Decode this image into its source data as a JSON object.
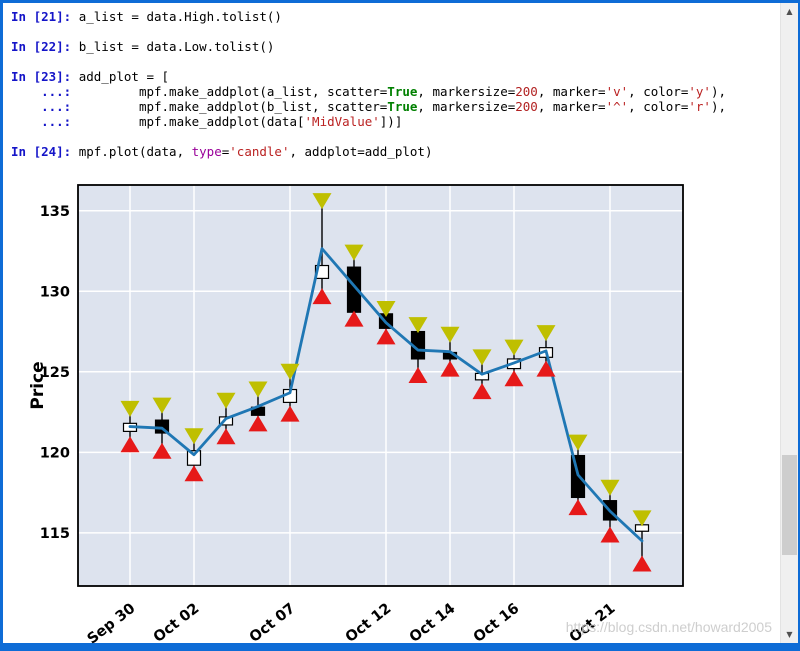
{
  "window": {
    "frame_color": "#0e6cd6",
    "watermark": "https://blog.csdn.net/howard2005"
  },
  "console": {
    "palette": {
      "prompt": "#1414c8",
      "code": "#000000",
      "keyword": "#008000",
      "number": "#b22222",
      "string": "#ba2121",
      "builtin": "#990099"
    },
    "lines": [
      {
        "segments": [
          {
            "t": "In [21]: ",
            "c": "prompt",
            "b": 1
          },
          {
            "t": "a_list = data.High.tolist()",
            "c": "code"
          }
        ]
      },
      {
        "segments": []
      },
      {
        "segments": [
          {
            "t": "In [22]: ",
            "c": "prompt",
            "b": 1
          },
          {
            "t": "b_list = data.Low.tolist()",
            "c": "code"
          }
        ]
      },
      {
        "segments": []
      },
      {
        "segments": [
          {
            "t": "In [23]: ",
            "c": "prompt",
            "b": 1
          },
          {
            "t": "add_plot = [",
            "c": "code"
          }
        ]
      },
      {
        "segments": [
          {
            "t": "    ...: ",
            "c": "prompt",
            "b": 1
          },
          {
            "t": "        mpf.make_addplot(a_list, scatter=",
            "c": "code"
          },
          {
            "t": "True",
            "c": "keyword",
            "b": 1
          },
          {
            "t": ", markersize=",
            "c": "code"
          },
          {
            "t": "200",
            "c": "number"
          },
          {
            "t": ", marker=",
            "c": "code"
          },
          {
            "t": "'v'",
            "c": "string"
          },
          {
            "t": ", color=",
            "c": "code"
          },
          {
            "t": "'y'",
            "c": "string"
          },
          {
            "t": "),",
            "c": "code"
          }
        ]
      },
      {
        "segments": [
          {
            "t": "    ...: ",
            "c": "prompt",
            "b": 1
          },
          {
            "t": "        mpf.make_addplot(b_list, scatter=",
            "c": "code"
          },
          {
            "t": "True",
            "c": "keyword",
            "b": 1
          },
          {
            "t": ", markersize=",
            "c": "code"
          },
          {
            "t": "200",
            "c": "number"
          },
          {
            "t": ", marker=",
            "c": "code"
          },
          {
            "t": "'^'",
            "c": "string"
          },
          {
            "t": ", color=",
            "c": "code"
          },
          {
            "t": "'r'",
            "c": "string"
          },
          {
            "t": "),",
            "c": "code"
          }
        ]
      },
      {
        "segments": [
          {
            "t": "    ...: ",
            "c": "prompt",
            "b": 1
          },
          {
            "t": "        mpf.make_addplot(data[",
            "c": "code"
          },
          {
            "t": "'MidValue'",
            "c": "string"
          },
          {
            "t": "])]",
            "c": "code"
          }
        ]
      },
      {
        "segments": []
      },
      {
        "segments": [
          {
            "t": "In [24]: ",
            "c": "prompt",
            "b": 1
          },
          {
            "t": "mpf.plot(data, ",
            "c": "code"
          },
          {
            "t": "type",
            "c": "builtin"
          },
          {
            "t": "=",
            "c": "code"
          },
          {
            "t": "'candle'",
            "c": "string"
          },
          {
            "t": ", addplot=add_plot)",
            "c": "code"
          }
        ]
      }
    ]
  },
  "chart_data": {
    "type": "candlestick",
    "title": "",
    "xlabel": "",
    "ylabel": "Price",
    "ylim": [
      111.7,
      136.6
    ],
    "y_ticks": [
      115,
      120,
      125,
      130,
      135
    ],
    "x_ticks": [
      {
        "index": 0,
        "label": "Sep 30"
      },
      {
        "index": 2,
        "label": "Oct 02"
      },
      {
        "index": 5,
        "label": "Oct 07"
      },
      {
        "index": 8,
        "label": "Oct 12"
      },
      {
        "index": 10,
        "label": "Oct 14"
      },
      {
        "index": 12,
        "label": "Oct 16"
      },
      {
        "index": 15,
        "label": "Oct 21"
      }
    ],
    "candles": [
      {
        "o": 121.3,
        "h": 122.7,
        "l": 120.5,
        "c": 121.8
      },
      {
        "o": 122.0,
        "h": 122.9,
        "l": 120.1,
        "c": 121.2
      },
      {
        "o": 119.2,
        "h": 121.0,
        "l": 118.7,
        "c": 120.1
      },
      {
        "o": 121.7,
        "h": 123.2,
        "l": 121.0,
        "c": 122.2
      },
      {
        "o": 122.8,
        "h": 123.9,
        "l": 121.8,
        "c": 122.3
      },
      {
        "o": 123.1,
        "h": 125.0,
        "l": 122.4,
        "c": 123.9
      },
      {
        "o": 130.8,
        "h": 135.6,
        "l": 129.7,
        "c": 131.6
      },
      {
        "o": 131.5,
        "h": 132.4,
        "l": 128.3,
        "c": 128.7
      },
      {
        "o": 128.6,
        "h": 128.9,
        "l": 127.2,
        "c": 127.7
      },
      {
        "o": 127.5,
        "h": 127.9,
        "l": 124.8,
        "c": 125.8
      },
      {
        "o": 126.2,
        "h": 127.3,
        "l": 125.2,
        "c": 125.8
      },
      {
        "o": 124.5,
        "h": 125.9,
        "l": 123.8,
        "c": 124.9
      },
      {
        "o": 125.2,
        "h": 126.5,
        "l": 124.6,
        "c": 125.8
      },
      {
        "o": 125.9,
        "h": 127.4,
        "l": 125.2,
        "c": 126.5
      },
      {
        "o": 119.8,
        "h": 120.6,
        "l": 116.6,
        "c": 117.2
      },
      {
        "o": 117.0,
        "h": 117.8,
        "l": 114.9,
        "c": 115.8
      },
      {
        "o": 115.1,
        "h": 115.9,
        "l": 113.1,
        "c": 115.5
      }
    ],
    "midvalue": [
      121.6,
      121.5,
      119.85,
      122.1,
      122.85,
      123.7,
      132.65,
      130.35,
      128.05,
      126.35,
      126.25,
      124.85,
      125.55,
      126.3,
      118.6,
      116.35,
      114.5
    ],
    "markers": {
      "high": {
        "shape": "triangle-down",
        "color": "#bfbf00"
      },
      "low": {
        "shape": "triangle-up",
        "color": "#e61919"
      }
    },
    "colors": {
      "plot_bg": "#dde3ee",
      "grid": "#ffffff",
      "up": "#ffffff",
      "down": "#000000",
      "wick": "#000000",
      "mid_line": "#1f77b4",
      "axis": "#000000"
    },
    "legend": "off",
    "grid": "on"
  },
  "scrollbar": {
    "up_icon": "▲",
    "down_icon": "▼"
  }
}
